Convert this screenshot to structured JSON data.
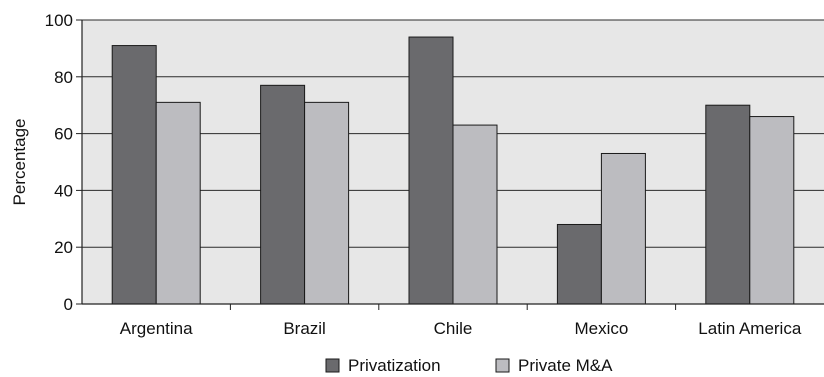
{
  "chart_data": {
    "type": "bar",
    "title": "",
    "xlabel": "",
    "ylabel": "Percentage",
    "categories": [
      "Argentina",
      "Brazil",
      "Chile",
      "Mexico",
      "Latin America"
    ],
    "series": [
      {
        "name": "Privatization",
        "values": [
          91,
          77,
          94,
          28,
          70
        ],
        "color": "#6a6a6d"
      },
      {
        "name": "Private M&A",
        "values": [
          71,
          71,
          63,
          53,
          66
        ],
        "color": "#bcbcc0"
      }
    ],
    "ylim": [
      0,
      100
    ],
    "yticks": [
      0,
      20,
      40,
      60,
      80,
      100
    ],
    "grid": true,
    "legend": "bottom",
    "plot_background": "#e7e7e7"
  }
}
